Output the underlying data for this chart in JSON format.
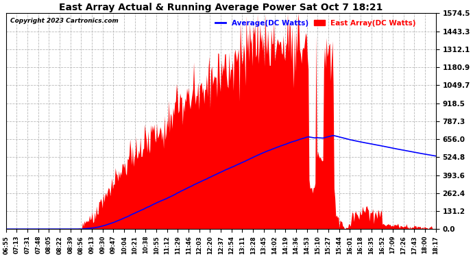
{
  "title": "East Array Actual & Running Average Power Sat Oct 7 18:21",
  "copyright": "Copyright 2023 Cartronics.com",
  "legend_avg": "Average(DC Watts)",
  "legend_east": "East Array(DC Watts)",
  "ymin": 0.0,
  "ymax": 1574.5,
  "yticks": [
    0.0,
    131.2,
    262.4,
    393.6,
    524.8,
    656.0,
    787.3,
    918.5,
    1049.7,
    1180.9,
    1312.1,
    1443.3,
    1574.5
  ],
  "xtick_labels": [
    "06:55",
    "07:13",
    "07:31",
    "07:48",
    "08:05",
    "08:22",
    "08:39",
    "08:56",
    "09:13",
    "09:30",
    "09:47",
    "10:04",
    "10:21",
    "10:38",
    "10:55",
    "11:12",
    "11:29",
    "11:46",
    "12:03",
    "12:20",
    "12:37",
    "12:54",
    "13:11",
    "13:28",
    "13:45",
    "14:02",
    "14:19",
    "14:36",
    "14:53",
    "15:10",
    "15:27",
    "15:44",
    "16:01",
    "16:18",
    "16:35",
    "16:52",
    "17:09",
    "17:26",
    "17:43",
    "18:00",
    "18:17"
  ],
  "fill_color": "#ff0000",
  "line_color": "#0000ff",
  "bg_color": "#ffffff",
  "grid_color": "#b0b0b0",
  "title_color": "#000000",
  "copyright_color": "#000000",
  "legend_avg_color": "#0000ff",
  "legend_east_color": "#ff0000"
}
